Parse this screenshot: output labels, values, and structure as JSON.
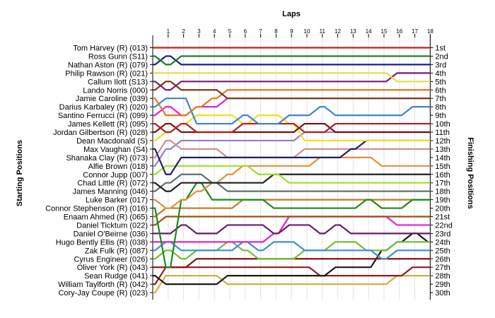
{
  "chart_data": {
    "type": "line",
    "title": "Laps",
    "ylabel_left": "Starting Positions",
    "ylabel_right": "Finishing Positions",
    "laps": [
      "1",
      "2",
      "3",
      "4",
      "5",
      "6",
      "7",
      "8",
      "9",
      "10",
      "11",
      "12",
      "13",
      "14",
      "15",
      "16",
      "17",
      "18"
    ],
    "positions": [
      "1st",
      "2nd",
      "3rd",
      "4th",
      "5th",
      "6th",
      "7th",
      "8th",
      "9th",
      "10th",
      "11th",
      "12th",
      "13th",
      "14th",
      "15th",
      "16th",
      "17th",
      "18th",
      "19th",
      "20th",
      "21st",
      "22nd",
      "23rd",
      "24th",
      "25th",
      "26th",
      "27th",
      "28th",
      "29th",
      "30th"
    ],
    "grid": true,
    "series": [
      {
        "name": "Tom Harvey (R) (013)",
        "color": "#d01818",
        "values": [
          1,
          1,
          1,
          1,
          1,
          1,
          1,
          1,
          1,
          1,
          1,
          1,
          1,
          1,
          1,
          1,
          1,
          1,
          1
        ]
      },
      {
        "name": "Ross Gunn (S11)",
        "color": "#1a7a1a",
        "values": [
          2,
          3,
          2,
          2,
          2,
          2,
          2,
          2,
          2,
          2,
          2,
          2,
          2,
          2,
          2,
          2,
          2,
          2,
          2
        ]
      },
      {
        "name": "Nathan Aston (R) (079)",
        "color": "#1c1c8c",
        "values": [
          3,
          2,
          3,
          3,
          3,
          3,
          3,
          3,
          3,
          3,
          3,
          3,
          3,
          3,
          3,
          3,
          3,
          3,
          3
        ]
      },
      {
        "name": "Philip Rawson (R) (021)",
        "color": "#e0e040",
        "values": [
          4,
          4,
          4,
          4,
          4,
          4,
          4,
          4,
          4,
          4,
          4,
          4,
          4,
          4,
          4,
          4,
          5,
          5,
          5
        ]
      },
      {
        "name": "Callum Ilott (S13)",
        "color": "#7b1a7b",
        "values": [
          5,
          6,
          5,
          5,
          5,
          5,
          5,
          5,
          5,
          5,
          5,
          5,
          5,
          5,
          5,
          5,
          4,
          4,
          4
        ]
      },
      {
        "name": "Lando Norris (000)",
        "color": "#7b3a10",
        "values": [
          6,
          5,
          6,
          6,
          6,
          7,
          7,
          7,
          7,
          7,
          7,
          7,
          7,
          7,
          7,
          7,
          7,
          7,
          7
        ]
      },
      {
        "name": "Jamie Caroline (039)",
        "color": "#e07a20",
        "values": [
          7,
          9,
          9,
          8,
          7,
          6,
          6,
          6,
          6,
          6,
          6,
          6,
          6,
          6,
          6,
          6,
          6,
          6,
          6
        ]
      },
      {
        "name": "Darius Karbaley (R) (020)",
        "color": "#3a86d0",
        "values": [
          8,
          7,
          7,
          10,
          10,
          10,
          9,
          10,
          10,
          9,
          9,
          8,
          9,
          9,
          9,
          9,
          9,
          8,
          8
        ]
      },
      {
        "name": "Santino Ferrucci (R) (099)",
        "color": "#e020e0",
        "values": [
          9,
          8,
          9,
          8,
          8,
          7,
          7,
          7,
          7,
          7,
          7,
          7,
          7,
          7,
          7,
          7,
          7,
          7,
          7
        ]
      },
      {
        "name": "James Kellett (R) (095)",
        "color": "#b02020",
        "values": [
          10,
          11,
          10,
          11,
          11,
          11,
          10,
          10,
          10,
          10,
          11,
          11,
          10,
          10,
          10,
          10,
          10,
          10,
          10
        ]
      },
      {
        "name": "Jordan Gilbertson (R) (028)",
        "color": "#7a1010",
        "values": [
          11,
          10,
          11,
          11,
          11,
          11,
          11,
          11,
          11,
          11,
          10,
          10,
          11,
          11,
          11,
          11,
          11,
          11,
          11
        ]
      },
      {
        "name": "Dean Macdonald (S)",
        "color": "#f0e020",
        "values": [
          12,
          11,
          10,
          9,
          9,
          9,
          10,
          9,
          9,
          10,
          12,
          12,
          12,
          12,
          12,
          12,
          12,
          12,
          12
        ]
      },
      {
        "name": "Max Vaughan (S4)",
        "color": "#20206a",
        "values": [
          13,
          16,
          14,
          14,
          14,
          14,
          14,
          14,
          14,
          14,
          14,
          14,
          14,
          13,
          12,
          12,
          12,
          12,
          12
        ]
      },
      {
        "name": "Shanaka Clay (R) (073)",
        "color": "#d09090",
        "values": [
          14,
          12,
          13,
          13,
          13,
          14,
          14,
          14,
          14,
          14,
          13,
          13,
          13,
          13,
          13,
          13,
          13,
          13,
          13
        ]
      },
      {
        "name": "Alfie Brown (018)",
        "color": "#9080d0",
        "values": [
          15,
          13,
          12,
          12,
          12,
          12,
          12,
          12,
          12,
          12,
          11,
          11,
          11,
          11,
          11,
          11,
          11,
          11,
          11
        ]
      },
      {
        "name": "Connor Jupp (007)",
        "color": "#a0e020",
        "values": [
          16,
          15,
          15,
          15,
          15,
          15,
          15,
          16,
          16,
          17,
          17,
          17,
          17,
          17,
          17,
          17,
          17,
          17,
          17
        ]
      },
      {
        "name": "Chad Little (R) (072)",
        "color": "#202020",
        "values": [
          17,
          18,
          17,
          17,
          17,
          17,
          17,
          17,
          16,
          16,
          16,
          16,
          16,
          16,
          16,
          16,
          16,
          16,
          16
        ]
      },
      {
        "name": "James Manning (046)",
        "color": "#607070",
        "values": [
          18,
          17,
          16,
          16,
          17,
          18,
          18,
          18,
          18,
          18,
          18,
          18,
          18,
          18,
          18,
          18,
          18,
          18,
          18
        ]
      },
      {
        "name": "Luke Barker (017)",
        "color": "#e09040",
        "values": [
          19,
          20,
          19,
          18,
          17,
          16,
          15,
          15,
          15,
          15,
          15,
          14,
          14,
          14,
          14,
          15,
          15,
          15,
          15
        ]
      },
      {
        "name": "Connor Stephenson (R) (016)",
        "color": "#1a8a1a",
        "values": [
          20,
          27,
          19,
          17,
          19,
          19,
          19,
          19,
          20,
          20,
          20,
          20,
          20,
          20,
          19,
          20,
          20,
          19,
          19
        ]
      },
      {
        "name": "Enaam Ahmed (R) (065)",
        "color": "#c07a20",
        "values": [
          21,
          20,
          20,
          20,
          20,
          20,
          19,
          19,
          19,
          19,
          19,
          19,
          19,
          19,
          19,
          19,
          19,
          19,
          19
        ]
      },
      {
        "name": "Daniel Ticktum (022)",
        "color": "#a05010",
        "values": [
          22,
          21,
          21,
          21,
          21,
          21,
          21,
          21,
          21,
          21,
          21,
          21,
          21,
          21,
          21,
          21,
          21,
          21,
          21
        ]
      },
      {
        "name": "Daniel O'Beirne (036)",
        "color": "#6a1a6a",
        "values": [
          23,
          23,
          22,
          23,
          23,
          22,
          22,
          22,
          23,
          22,
          22,
          23,
          22,
          23,
          23,
          23,
          23,
          23,
          23
        ]
      },
      {
        "name": "Hugo Bently Ellis (R) (038)",
        "color": "#e020e0",
        "values": [
          24,
          24,
          24,
          24,
          24,
          24,
          24,
          24,
          23,
          21,
          21,
          21,
          21,
          21,
          21,
          21,
          22,
          22,
          22
        ]
      },
      {
        "name": "Zak Fulk (R) (087)",
        "color": "#3a90d0",
        "values": [
          25,
          24,
          25,
          25,
          25,
          25,
          24,
          25,
          24,
          24,
          25,
          25,
          25,
          25,
          25,
          26,
          25,
          25,
          25
        ]
      },
      {
        "name": "Cyrus Engineer (026)",
        "color": "#70c030",
        "values": [
          26,
          25,
          26,
          25,
          25,
          24,
          25,
          26,
          26,
          26,
          25,
          25,
          24,
          24,
          25,
          25,
          24,
          24,
          24
        ]
      },
      {
        "name": "Oliver York (R) (043)",
        "color": "#8a1010",
        "values": [
          27,
          27,
          27,
          26,
          26,
          26,
          26,
          26,
          26,
          26,
          26,
          26,
          26,
          26,
          26,
          26,
          26,
          26,
          26
        ]
      },
      {
        "name": "Sean Rudge (041)",
        "color": "#1a1a1a",
        "values": [
          28,
          29,
          29,
          29,
          29,
          28,
          28,
          28,
          28,
          28,
          28,
          28,
          27,
          27,
          27,
          25,
          24,
          23,
          24
        ]
      },
      {
        "name": "William Taylforth (R) (042)",
        "color": "#8a2020",
        "values": [
          29,
          27,
          27,
          27,
          27,
          27,
          27,
          27,
          27,
          27,
          27,
          28,
          28,
          28,
          28,
          28,
          28,
          27,
          27
        ]
      },
      {
        "name": "Cory-Jay Coupe (R) (023)",
        "color": "#d0b040",
        "values": [
          30,
          28,
          28,
          28,
          28,
          29,
          29,
          29,
          29,
          29,
          29,
          29,
          29,
          29,
          29,
          29,
          28,
          28,
          28
        ]
      }
    ]
  }
}
